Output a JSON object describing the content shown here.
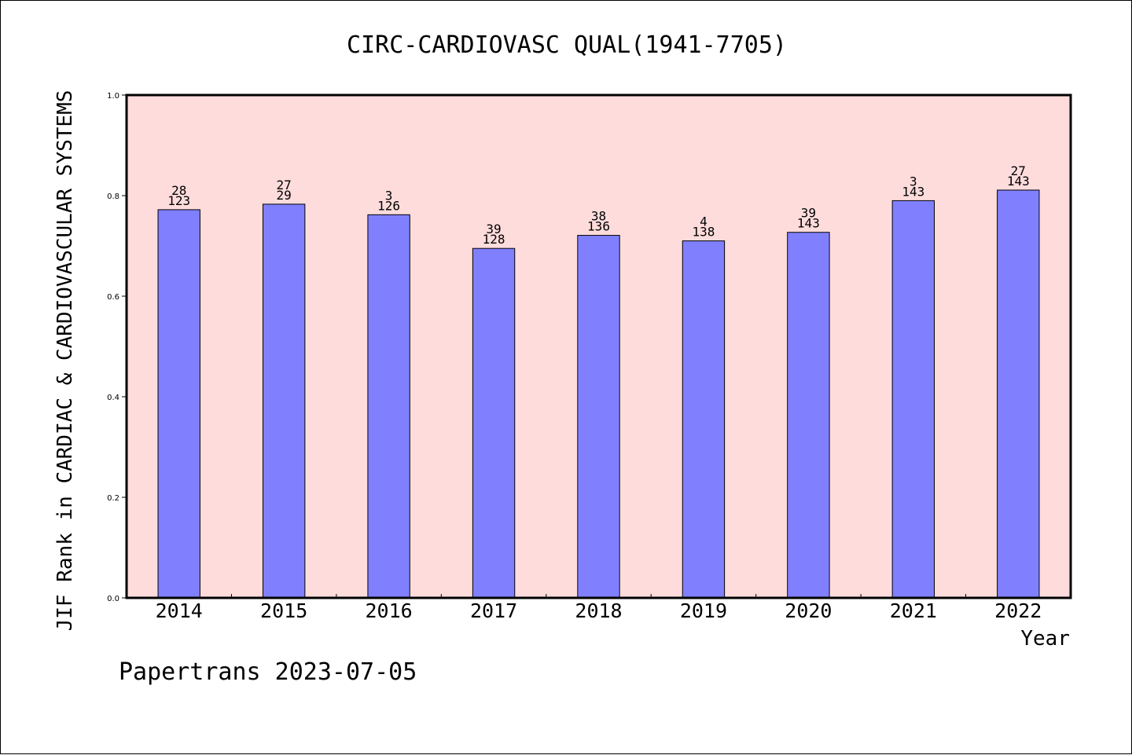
{
  "chart_data": {
    "type": "bar",
    "title": "CIRC-CARDIOVASC QUAL(1941-7705)",
    "xlabel": "Year",
    "ylabel": "JIF Rank in CARDIAC & CARDIOVASCULAR SYSTEMS",
    "categories": [
      "2014",
      "2015",
      "2016",
      "2017",
      "2018",
      "2019",
      "2020",
      "2021",
      "2022"
    ],
    "values": [
      0.772,
      0.783,
      0.762,
      0.695,
      0.721,
      0.71,
      0.727,
      0.79,
      0.811
    ],
    "annotations": [
      [
        "28",
        "123"
      ],
      [
        "27",
        "29"
      ],
      [
        "3",
        "126"
      ],
      [
        "39",
        "128"
      ],
      [
        "38",
        "136"
      ],
      [
        "4",
        "138"
      ],
      [
        "39",
        "143"
      ],
      [
        "3",
        "143"
      ],
      [
        "27",
        "143"
      ]
    ],
    "ylim": [
      0,
      1.0
    ],
    "yticks": [
      "0.0",
      "0.2",
      "0.4",
      "0.6",
      "0.8",
      "1.0"
    ],
    "grid": false,
    "bar_color": "#8080ff",
    "plot_background": "#ffdcdc"
  },
  "footer": "Papertrans 2023-07-05"
}
